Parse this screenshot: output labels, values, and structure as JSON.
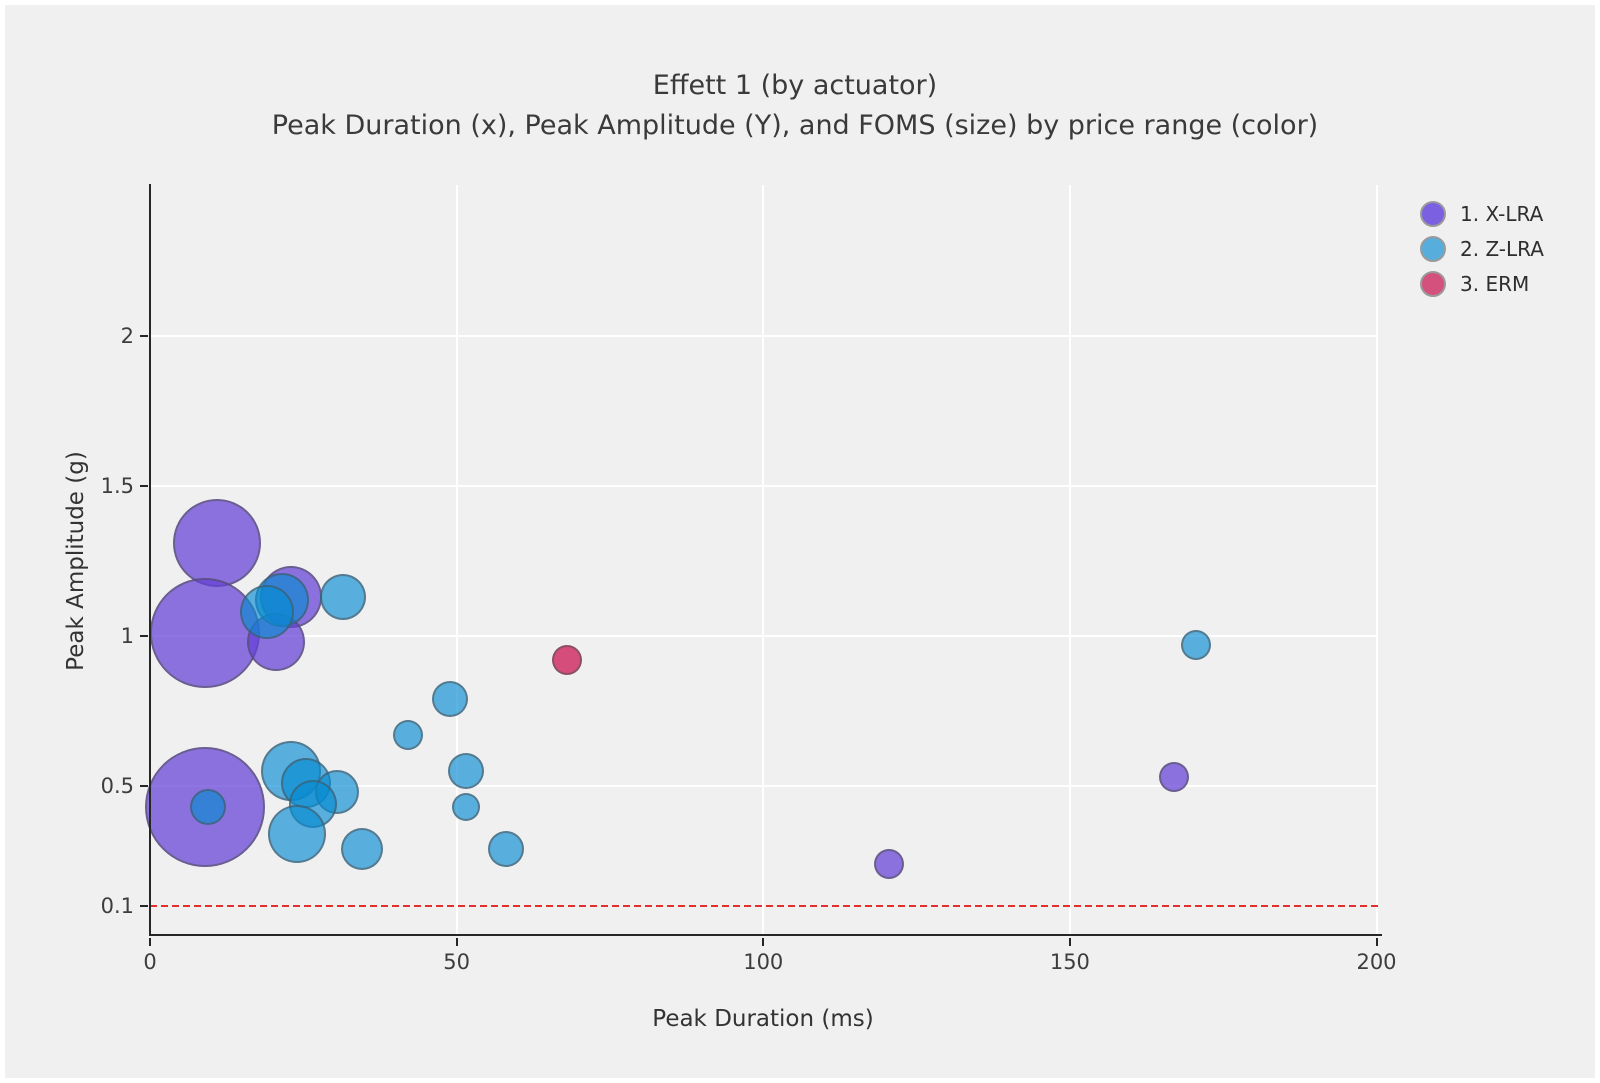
{
  "page": {
    "background": "#F0F0F1",
    "frame_color": "#FFFFFF"
  },
  "chart_data": {
    "type": "scatter",
    "subtype": "bubble",
    "title": "Effett 1 (by actuator)",
    "subtitle": "Peak Duration (x), Peak Amplitude (Y), and FOMS (size) by price range (color)",
    "xlabel": "Peak Duration (ms)",
    "ylabel": "Peak Amplitude (g)",
    "xlim": [
      0,
      200
    ],
    "ylim": [
      0,
      2.5
    ],
    "x_ticks": [
      "0",
      "50",
      "100",
      "150",
      "200"
    ],
    "y_ticks": [
      "2",
      "1.5",
      "1",
      "0.5",
      "0.1"
    ],
    "y_gridline_values": [
      2,
      1.5,
      1,
      0.5
    ],
    "x_gridline_values": [
      50,
      100,
      150,
      200
    ],
    "grid": true,
    "grid_color": "#FFFFFF",
    "legend_position": "top-right",
    "size_encodes": "FOMS",
    "color_encodes": "price range",
    "threshold_line": {
      "y": 0.1,
      "color": "#E3302C",
      "style": "dashed"
    },
    "series": [
      {
        "name": "1. X-LRA",
        "legend_color": "#7B60E2",
        "fill": "rgba(100,64,214,0.72)",
        "points": [
          {
            "x": 11,
            "y": 1.31,
            "r": 44
          },
          {
            "x": 9,
            "y": 1.01,
            "r": 55
          },
          {
            "x": 23,
            "y": 1.13,
            "r": 31
          },
          {
            "x": 20.5,
            "y": 0.98,
            "r": 29
          },
          {
            "x": 9,
            "y": 0.43,
            "r": 60
          },
          {
            "x": 120.5,
            "y": 0.24,
            "r": 15
          },
          {
            "x": 167,
            "y": 0.53,
            "r": 15
          }
        ]
      },
      {
        "name": "2. Z-LRA",
        "legend_color": "#57AEDC",
        "fill": "rgba(6,138,209,0.65)",
        "points": [
          {
            "x": 21.5,
            "y": 1.12,
            "r": 27
          },
          {
            "x": 19,
            "y": 1.08,
            "r": 27
          },
          {
            "x": 31.5,
            "y": 1.13,
            "r": 23
          },
          {
            "x": 9.5,
            "y": 0.43,
            "r": 18
          },
          {
            "x": 23,
            "y": 0.55,
            "r": 30
          },
          {
            "x": 25.5,
            "y": 0.51,
            "r": 25
          },
          {
            "x": 30.5,
            "y": 0.48,
            "r": 22
          },
          {
            "x": 26.5,
            "y": 0.44,
            "r": 24
          },
          {
            "x": 24,
            "y": 0.34,
            "r": 29
          },
          {
            "x": 34.5,
            "y": 0.29,
            "r": 21
          },
          {
            "x": 42,
            "y": 0.67,
            "r": 15
          },
          {
            "x": 49,
            "y": 0.79,
            "r": 18
          },
          {
            "x": 51.5,
            "y": 0.55,
            "r": 18
          },
          {
            "x": 51.5,
            "y": 0.43,
            "r": 14
          },
          {
            "x": 58,
            "y": 0.29,
            "r": 18
          },
          {
            "x": 170.5,
            "y": 0.97,
            "r": 15
          }
        ]
      },
      {
        "name": "3. ERM",
        "legend_color": "#D4517E",
        "fill": "rgba(206,36,94,0.8)",
        "points": [
          {
            "x": 68,
            "y": 0.92,
            "r": 15
          }
        ]
      }
    ]
  }
}
